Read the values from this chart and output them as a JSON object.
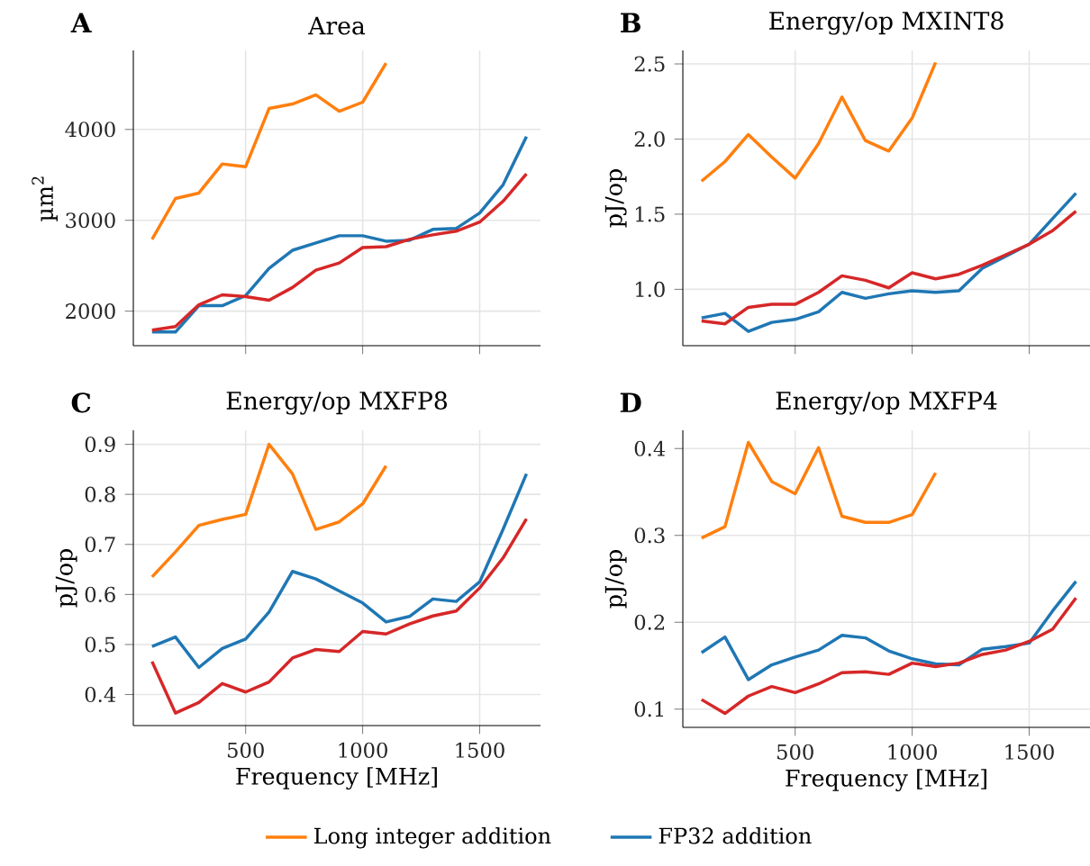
{
  "chart_data": [
    {
      "type": "line",
      "title": "Area",
      "ylabel": "µm$^{2}$",
      "annotations": [
        "A"
      ],
      "x": [
        100,
        200,
        300,
        400,
        500,
        600,
        700,
        800,
        900,
        1000,
        1100,
        1200,
        1300,
        1400,
        1500,
        1600,
        1700
      ],
      "xlim": [
        20,
        1760
      ],
      "xticks": [
        500,
        1000,
        1500
      ],
      "ylim": [
        1620,
        4870
      ],
      "yticks": [
        2000,
        3000,
        4000
      ],
      "grid": true,
      "tick_labels": "y",
      "series": [
        {
          "color": "#ff7f0e",
          "x": [
            100,
            200,
            300,
            400,
            500,
            600,
            700,
            800,
            900,
            1000,
            1100
          ],
          "values": [
            2790,
            3240,
            3300,
            3620,
            3590,
            4230,
            4280,
            4380,
            4200,
            4300,
            4730
          ]
        },
        {
          "color": "#1f77b4",
          "values": [
            1770,
            1770,
            2060,
            2060,
            2170,
            2470,
            2670,
            2750,
            2830,
            2830,
            2770,
            2780,
            2900,
            2910,
            3080,
            3390,
            3920
          ]
        },
        {
          "color": "#d62728",
          "values": [
            1790,
            1830,
            2070,
            2180,
            2160,
            2120,
            2260,
            2450,
            2530,
            2700,
            2710,
            2790,
            2840,
            2880,
            2980,
            3210,
            3510
          ]
        }
      ]
    },
    {
      "type": "line",
      "title": "Energy/op MXINT8",
      "ylabel": "pJ/op",
      "annotations": [
        "B"
      ],
      "x": [
        100,
        200,
        300,
        400,
        500,
        600,
        700,
        800,
        900,
        1000,
        1100,
        1200,
        1300,
        1400,
        1500,
        1600,
        1700
      ],
      "xlim": [
        20,
        1760
      ],
      "xticks": [
        500,
        1000,
        1500
      ],
      "ylim": [
        0.625,
        2.59
      ],
      "yticks": [
        {
          "value": 1,
          "label": "1.0"
        },
        1.5,
        {
          "value": 2,
          "label": "2.0"
        },
        2.5
      ],
      "grid": true,
      "tick_labels": "y",
      "series": [
        {
          "color": "#ff7f0e",
          "x": [
            100,
            200,
            300,
            400,
            500,
            600,
            700,
            800,
            900,
            1000,
            1100
          ],
          "values": [
            1.72,
            1.85,
            2.03,
            1.88,
            1.74,
            1.97,
            2.28,
            1.99,
            1.92,
            2.14,
            2.51
          ]
        },
        {
          "color": "#1f77b4",
          "values": [
            0.81,
            0.84,
            0.72,
            0.78,
            0.8,
            0.85,
            0.98,
            0.94,
            0.97,
            0.99,
            0.98,
            0.99,
            1.14,
            1.22,
            1.3,
            1.47,
            1.64
          ]
        },
        {
          "color": "#d62728",
          "values": [
            0.79,
            0.77,
            0.88,
            0.9,
            0.9,
            0.98,
            1.09,
            1.06,
            1.01,
            1.11,
            1.07,
            1.1,
            1.16,
            1.23,
            1.3,
            1.39,
            1.52
          ]
        }
      ]
    },
    {
      "type": "line",
      "title": "Energy/op MXFP8",
      "xlabel": "Frequency [MHz]",
      "ylabel": "pJ/op",
      "annotations": [
        "C"
      ],
      "x": [
        100,
        200,
        300,
        400,
        500,
        600,
        700,
        800,
        900,
        1000,
        1100,
        1200,
        1300,
        1400,
        1500,
        1600,
        1700
      ],
      "xlim": [
        20,
        1760
      ],
      "xticks": [
        500,
        1000,
        1500
      ],
      "ylim": [
        0.338,
        0.928
      ],
      "yticks": [
        0.4,
        0.5,
        0.6,
        0.7,
        0.8,
        0.9
      ],
      "grid": true,
      "series": [
        {
          "color": "#ff7f0e",
          "x": [
            100,
            200,
            300,
            400,
            500,
            600,
            700,
            800,
            900,
            1000,
            1100
          ],
          "values": [
            0.635,
            0.685,
            0.738,
            0.75,
            0.76,
            0.9,
            0.841,
            0.73,
            0.745,
            0.781,
            0.857
          ]
        },
        {
          "color": "#1f77b4",
          "values": [
            0.496,
            0.515,
            0.454,
            0.492,
            0.511,
            0.565,
            0.646,
            0.631,
            0.607,
            0.583,
            0.545,
            0.556,
            0.591,
            0.586,
            0.625,
            0.73,
            0.841
          ]
        },
        {
          "color": "#d62728",
          "values": [
            0.466,
            0.363,
            0.384,
            0.422,
            0.405,
            0.425,
            0.473,
            0.49,
            0.486,
            0.526,
            0.521,
            0.541,
            0.557,
            0.567,
            0.613,
            0.673,
            0.751
          ]
        }
      ]
    },
    {
      "type": "line",
      "title": "Energy/op MXFP4",
      "xlabel": "Frequency [MHz]",
      "ylabel": "pJ/op",
      "annotations": [
        "D"
      ],
      "x": [
        100,
        200,
        300,
        400,
        500,
        600,
        700,
        800,
        900,
        1000,
        1100,
        1200,
        1300,
        1400,
        1500,
        1600,
        1700
      ],
      "xlim": [
        20,
        1760
      ],
      "xticks": [
        500,
        1000,
        1500
      ],
      "ylim": [
        0.079,
        0.421
      ],
      "yticks": [
        0.1,
        0.2,
        0.3,
        0.4
      ],
      "grid": true,
      "legend": "bottom",
      "series": [
        {
          "name": "Long integer addition",
          "color": "#ff7f0e",
          "x": [
            100,
            200,
            300,
            400,
            500,
            600,
            700,
            800,
            900,
            1000,
            1100
          ],
          "values": [
            0.297,
            0.31,
            0.407,
            0.362,
            0.348,
            0.401,
            0.322,
            0.315,
            0.315,
            0.324,
            0.372
          ]
        },
        {
          "name": "FP32 addition",
          "color": "#1f77b4",
          "values": [
            0.165,
            0.183,
            0.134,
            0.151,
            0.16,
            0.168,
            0.185,
            0.182,
            0.167,
            0.158,
            0.152,
            0.151,
            0.169,
            0.172,
            0.176,
            0.213,
            0.247
          ]
        },
        {
          "color": "#d62728",
          "values": [
            0.111,
            0.095,
            0.115,
            0.126,
            0.119,
            0.129,
            0.142,
            0.143,
            0.14,
            0.153,
            0.149,
            0.153,
            0.163,
            0.168,
            0.178,
            0.192,
            0.228
          ]
        }
      ]
    }
  ]
}
